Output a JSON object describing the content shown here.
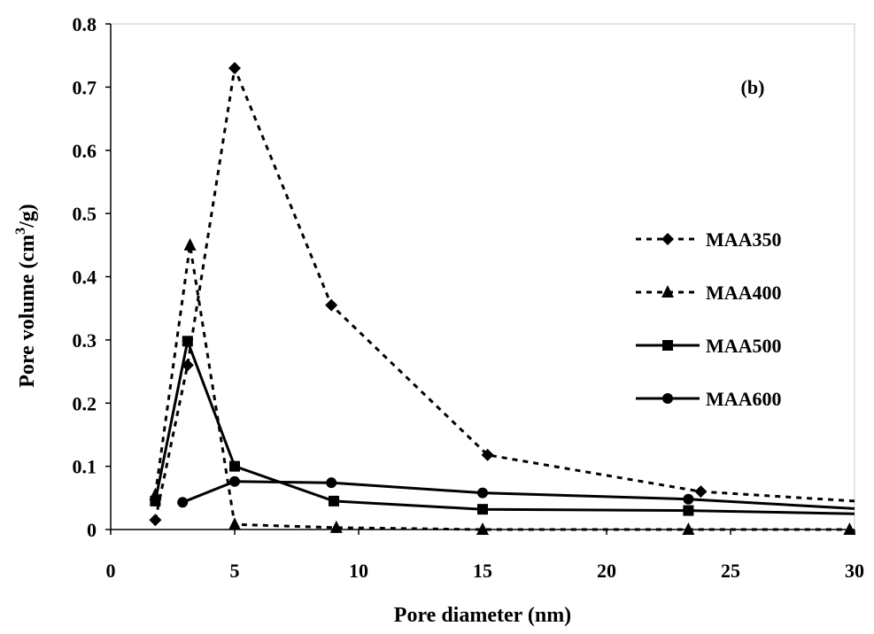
{
  "chart_data": {
    "type": "line",
    "panel_label": "(b)",
    "xlabel": "Pore diameter (nm)",
    "ylabel_prefix": "Pore volume (cm",
    "ylabel_sup": "3",
    "ylabel_suffix": "/g)",
    "xlim": [
      0,
      30
    ],
    "ylim": [
      0,
      0.8
    ],
    "xticks": [
      0,
      5,
      10,
      15,
      20,
      25,
      30
    ],
    "xtick_labels": [
      "0",
      "5",
      "10",
      "15",
      "20",
      "25",
      "30"
    ],
    "yticks": [
      0,
      0.1,
      0.2,
      0.3,
      0.4,
      0.5,
      0.6,
      0.7,
      0.8
    ],
    "ytick_labels": [
      "0",
      "0.1",
      "0.2",
      "0.3",
      "0.4",
      "0.5",
      "0.6",
      "0.7",
      "0.8"
    ],
    "grid": false,
    "legend_position": "right",
    "series": [
      {
        "name": "MAA350",
        "marker": "diamond",
        "line": "dashed",
        "x": [
          1.8,
          3.1,
          5.0,
          8.9,
          15.2,
          23.8,
          30.0
        ],
        "y": [
          0.015,
          0.26,
          0.73,
          0.355,
          0.118,
          0.06,
          0.045
        ],
        "markers_shown": [
          true,
          true,
          true,
          true,
          true,
          true,
          false
        ]
      },
      {
        "name": "MAA400",
        "marker": "triangle",
        "line": "dashed",
        "x": [
          1.8,
          3.2,
          5.0,
          9.1,
          15.0,
          23.3,
          29.8
        ],
        "y": [
          0.055,
          0.45,
          0.008,
          0.003,
          0.0,
          0.0,
          0.0
        ],
        "markers_shown": [
          true,
          true,
          true,
          true,
          true,
          true,
          true
        ]
      },
      {
        "name": "MAA500",
        "marker": "square",
        "line": "solid",
        "x": [
          1.8,
          3.1,
          5.0,
          9.0,
          15.0,
          23.3,
          30.0
        ],
        "y": [
          0.045,
          0.298,
          0.1,
          0.045,
          0.032,
          0.03,
          0.025
        ],
        "markers_shown": [
          true,
          true,
          true,
          true,
          true,
          true,
          false
        ]
      },
      {
        "name": "MAA600",
        "marker": "circle",
        "line": "solid",
        "x": [
          2.9,
          5.0,
          8.9,
          15.0,
          23.3,
          30.0
        ],
        "y": [
          0.043,
          0.076,
          0.074,
          0.058,
          0.048,
          0.033
        ],
        "markers_shown": [
          true,
          true,
          true,
          true,
          true,
          false
        ]
      }
    ]
  }
}
